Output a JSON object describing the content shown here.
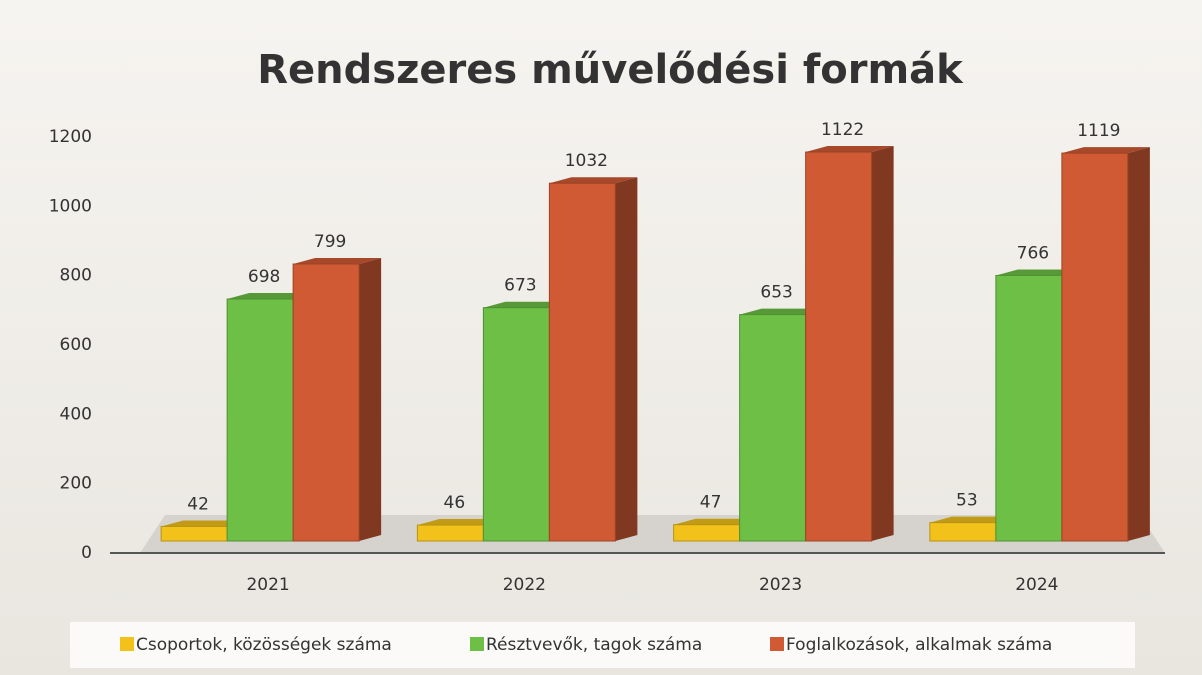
{
  "chart_data": {
    "type": "bar3d",
    "title": "Rendszeres művelődési formák",
    "categories": [
      "2021",
      "2022",
      "2023",
      "2024"
    ],
    "series": [
      {
        "name": "Csoportok, közösségek száma",
        "color": "#f2c21b",
        "values": [
          42,
          46,
          47,
          53
        ]
      },
      {
        "name": "Résztvevők, tagok száma",
        "color": "#6dbf45",
        "values": [
          698,
          673,
          653,
          766
        ]
      },
      {
        "name": "Foglalkozások, alkalmak száma",
        "color": "#cf5a33",
        "values": [
          799,
          1032,
          1122,
          1119
        ]
      }
    ],
    "ylim": [
      0,
      1200
    ],
    "yticks": [
      0,
      200,
      400,
      600,
      800,
      1000,
      1200
    ],
    "grid": false,
    "legend": "bottom"
  }
}
